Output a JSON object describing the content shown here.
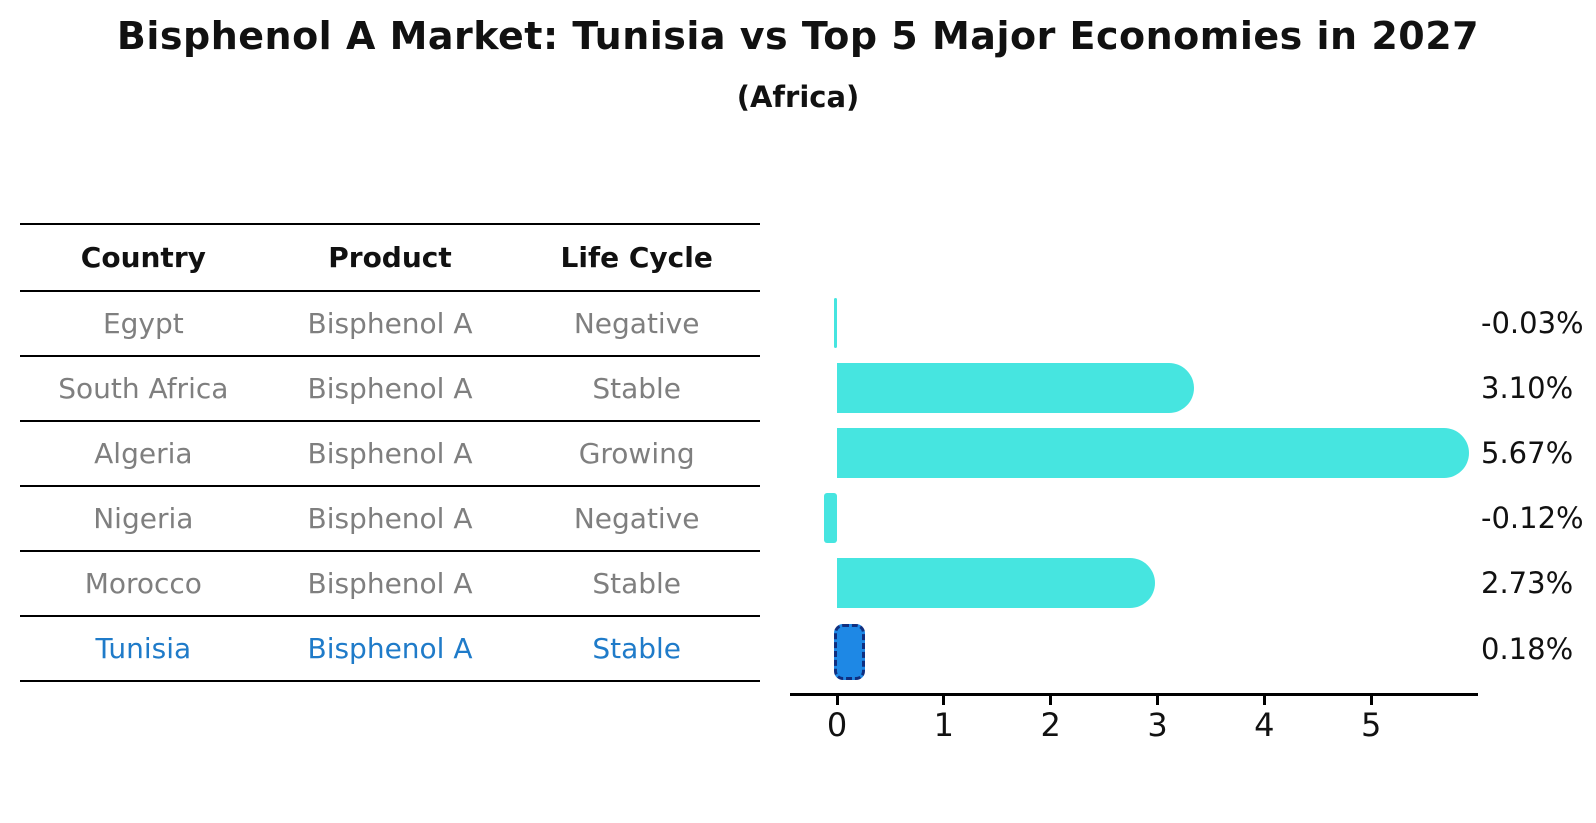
{
  "title": "Bisphenol A Market: Tunisia vs Top 5 Major Economies in 2027",
  "subtitle": "(Africa)",
  "table": {
    "headers": [
      "Country",
      "Product",
      "Life Cycle"
    ],
    "rows": [
      {
        "country": "Egypt",
        "product": "Bisphenol A",
        "life_cycle": "Negative",
        "highlight": false
      },
      {
        "country": "South Africa",
        "product": "Bisphenol A",
        "life_cycle": "Stable",
        "highlight": false
      },
      {
        "country": "Algeria",
        "product": "Bisphenol A",
        "life_cycle": "Growing",
        "highlight": false
      },
      {
        "country": "Nigeria",
        "product": "Bisphenol A",
        "life_cycle": "Negative",
        "highlight": false
      },
      {
        "country": "Morocco",
        "product": "Bisphenol A",
        "life_cycle": "Stable",
        "highlight": false
      },
      {
        "country": "Tunisia",
        "product": "Bisphenol A",
        "life_cycle": "Stable",
        "highlight": true
      }
    ]
  },
  "chart_data": {
    "type": "bar",
    "orientation": "horizontal",
    "title": "Bisphenol A Market: Tunisia vs Top 5 Major Economies in 2027",
    "subtitle": "(Africa)",
    "categories": [
      "Egypt",
      "South Africa",
      "Algeria",
      "Nigeria",
      "Morocco",
      "Tunisia"
    ],
    "values": [
      -0.03,
      3.1,
      5.67,
      -0.12,
      2.73,
      0.18
    ],
    "value_labels": [
      "-0.03%",
      "3.10%",
      "5.67%",
      "-0.12%",
      "2.73%",
      "0.18%"
    ],
    "highlight_index": 5,
    "xticks": [
      "0",
      "1",
      "2",
      "3",
      "4",
      "5"
    ],
    "xtick_values": [
      0,
      1,
      2,
      3,
      4,
      5
    ],
    "xlim": [
      -0.44,
      6.0
    ],
    "xlabel": "",
    "ylabel": "",
    "grid": false,
    "legend": false
  },
  "colors": {
    "bar": "#46E5E0",
    "highlight_bar": "#1E88E5",
    "highlight_border": "#102F80",
    "highlight_text": "#1F7BC9",
    "row_text": "#7F7F7F",
    "header_text": "#111111",
    "axis": "#000000"
  }
}
